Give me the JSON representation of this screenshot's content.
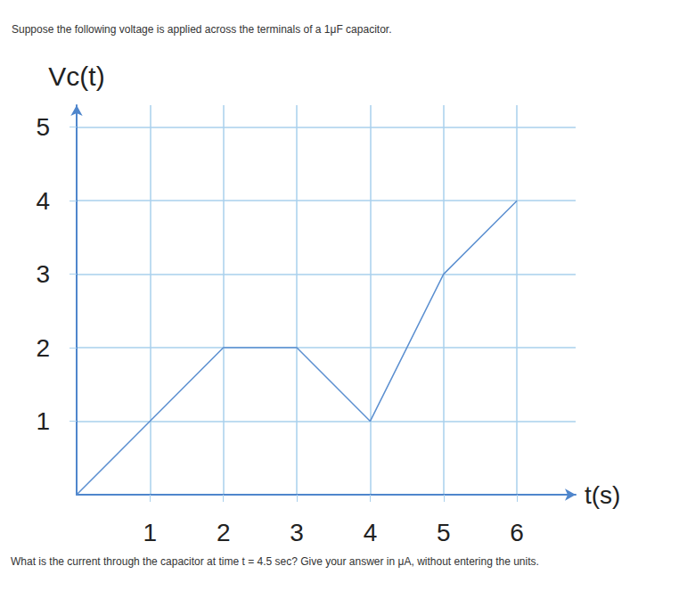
{
  "chart_data": {
    "type": "line",
    "title": "Suppose the following voltage is applied across the terminals of a 1μF capacitor.",
    "annotations": [
      "What is the current through the capacitor at time t = 4.5 sec? Give your answer in μA, without entering the units."
    ],
    "x_label": "t(s)",
    "y_label": "Vc(t)",
    "x": [
      0,
      1,
      2,
      3,
      4,
      5,
      6
    ],
    "values": [
      0,
      1,
      2,
      2,
      1,
      3,
      4
    ],
    "color": "#5b8fd0",
    "xlim": [
      0,
      6.8
    ],
    "ylim": [
      0,
      5.3
    ],
    "xticks": [
      1,
      2,
      3,
      4,
      5,
      6
    ],
    "yticks": [
      1,
      2,
      3,
      4,
      5
    ],
    "grid": true
  }
}
